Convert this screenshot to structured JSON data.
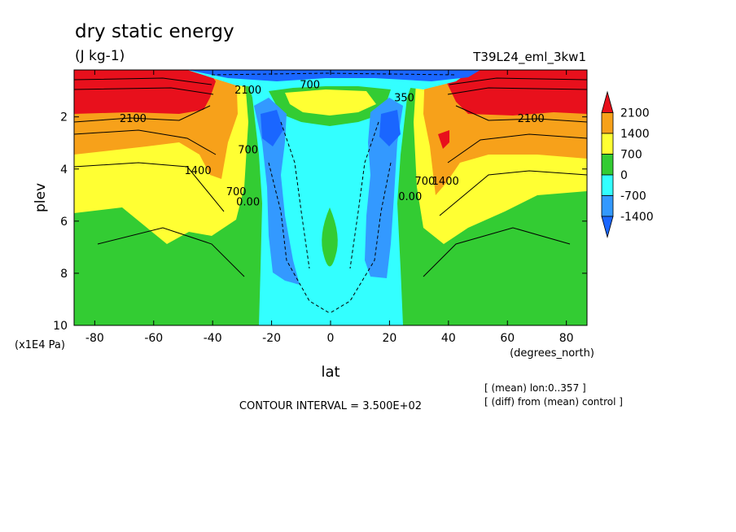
{
  "chart_data": {
    "type": "heatmap",
    "title": "dry static energy",
    "subtitle": "(J kg-1)",
    "run_label": "T39L24_eml_3kw1",
    "xlabel": "lat",
    "x_units": "(degrees_north)",
    "ylabel": "plev",
    "y_units": "(x1E4 Pa)",
    "xlim": [
      -87,
      87
    ],
    "ylim": [
      10,
      0.2
    ],
    "x_ticks": [
      -80,
      -60,
      -40,
      -20,
      0,
      20,
      40,
      60,
      80
    ],
    "x_tick_labels": [
      "-80",
      "-60",
      "-40",
      "-20",
      "0",
      "20",
      "40",
      "60",
      "80"
    ],
    "y_ticks": [
      2,
      4,
      6,
      8,
      10
    ],
    "y_tick_labels": [
      "2",
      "4",
      "6",
      "8",
      "10"
    ],
    "contour_interval_text": "CONTOUR INTERVAL = 3.500E+02",
    "notes": [
      "[ (mean) lon:0..357 ]",
      "[ (diff) from (mean) control ]"
    ],
    "colorbar": {
      "levels": [
        -1400,
        -700,
        0,
        700,
        1400,
        2100
      ],
      "labels": [
        "2100",
        "1400",
        "700",
        "0",
        "-700",
        "-1400"
      ],
      "colors": [
        "#e8101c",
        "#f7a11a",
        "#ffff33",
        "#33cc33",
        "#33ffff",
        "#3399ff",
        "#1a66ff"
      ]
    },
    "contour_labels": [
      {
        "text": "2100",
        "lat": -67,
        "plev": 2.2
      },
      {
        "text": "2100",
        "lat": 68,
        "plev": 2.2
      },
      {
        "text": "1400",
        "lat": -45,
        "plev": 4.2
      },
      {
        "text": "1400",
        "lat": 39,
        "plev": 4.6
      },
      {
        "text": "700",
        "lat": -28,
        "plev": 3.4
      },
      {
        "text": "700",
        "lat": -32,
        "plev": 5.0
      },
      {
        "text": "700",
        "lat": 32,
        "plev": 4.6
      },
      {
        "text": "700",
        "lat": -7,
        "plev": 0.9
      },
      {
        "text": "0.00",
        "lat": -28,
        "plev": 5.4
      },
      {
        "text": "0.00",
        "lat": 27,
        "plev": 5.2
      },
      {
        "text": "2100",
        "lat": -28,
        "plev": 1.1
      },
      {
        "text": "350",
        "lat": 25,
        "plev": 1.4
      }
    ]
  }
}
